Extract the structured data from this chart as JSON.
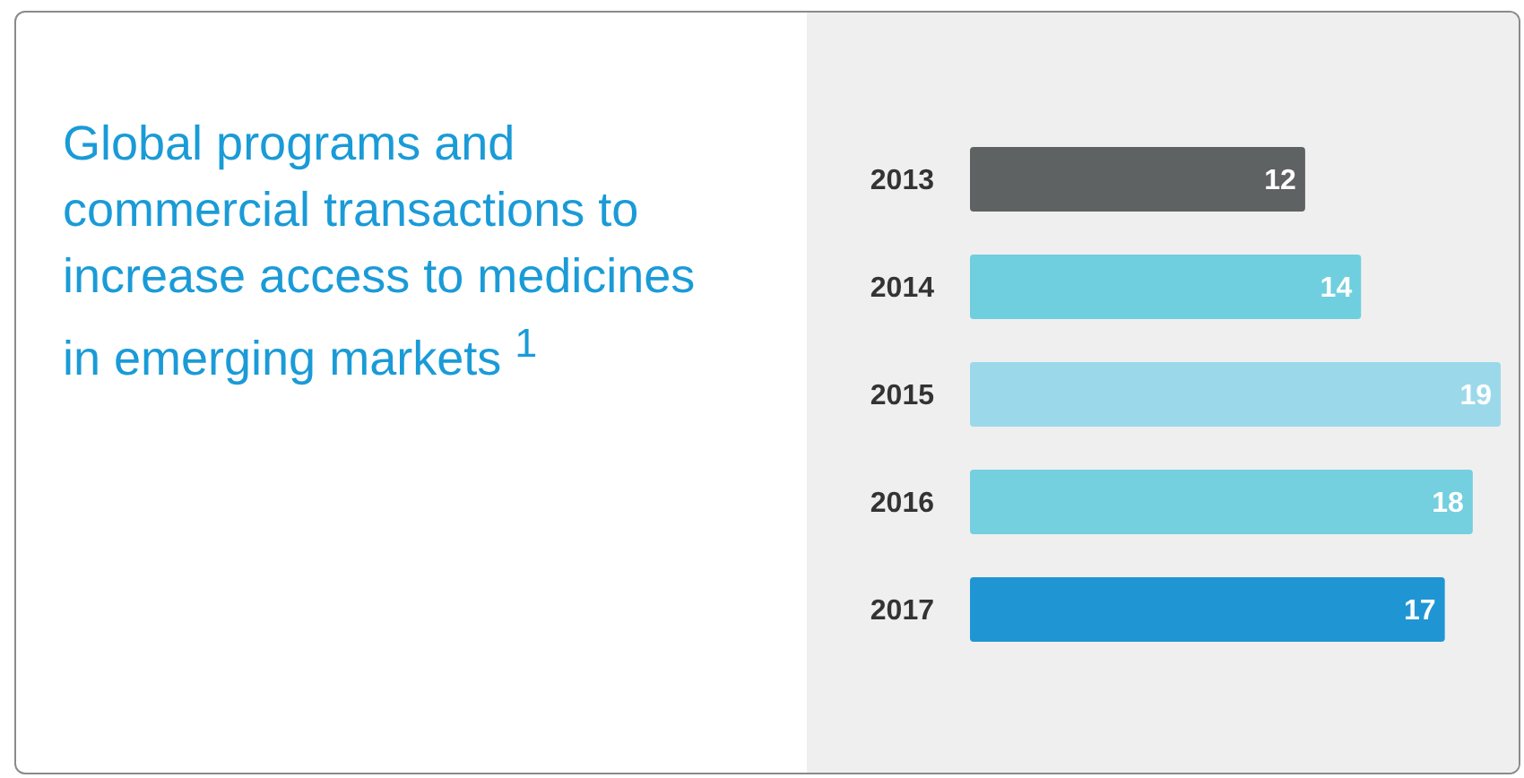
{
  "chart_data": {
    "type": "bar",
    "orientation": "horizontal",
    "title": "Global programs and commercial transactions to increase access to medicines in emerging markets $^{1}$",
    "categories": [
      "2013",
      "2014",
      "2015",
      "2016",
      "2017"
    ],
    "values": [
      12,
      14,
      19,
      18,
      17
    ],
    "colors": [
      "#5f6262",
      "#6fcfdf",
      "#9bd9ea",
      "#74cfdf",
      "#1f96d3"
    ],
    "data_labels": true
  }
}
